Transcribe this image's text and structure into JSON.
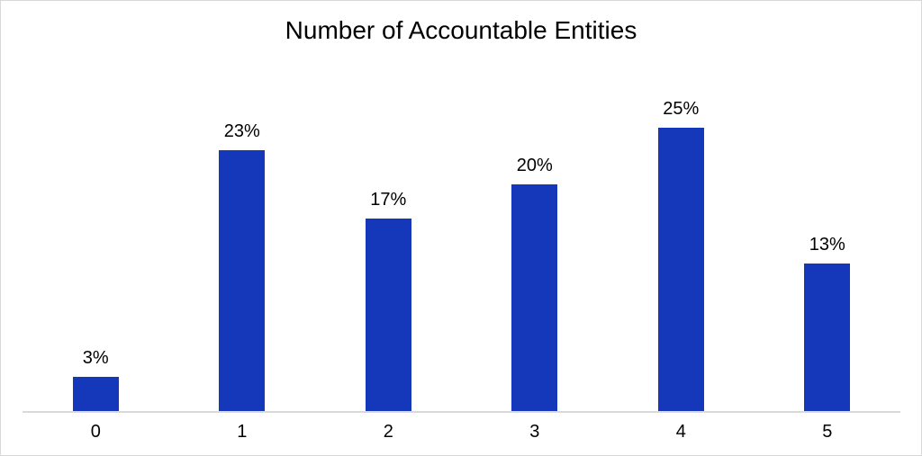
{
  "page": {
    "background": "#ffffff",
    "border_color": "#d8d8d8"
  },
  "chart_data": {
    "type": "bar",
    "title": "Number of Accountable Entities",
    "categories": [
      "0",
      "1",
      "2",
      "3",
      "4",
      "5"
    ],
    "values": [
      3,
      23,
      17,
      20,
      25,
      13
    ],
    "data_labels": [
      "3%",
      "23%",
      "17%",
      "20%",
      "25%",
      "13%"
    ],
    "xlabel": "",
    "ylabel": "",
    "ylim": [
      0,
      30
    ],
    "y_axis_visible": false,
    "gridlines": false,
    "legend_position": "none",
    "bar_color": "#1438b9",
    "axis_line_color": "#d9d9d9",
    "text_color": "#000000"
  }
}
